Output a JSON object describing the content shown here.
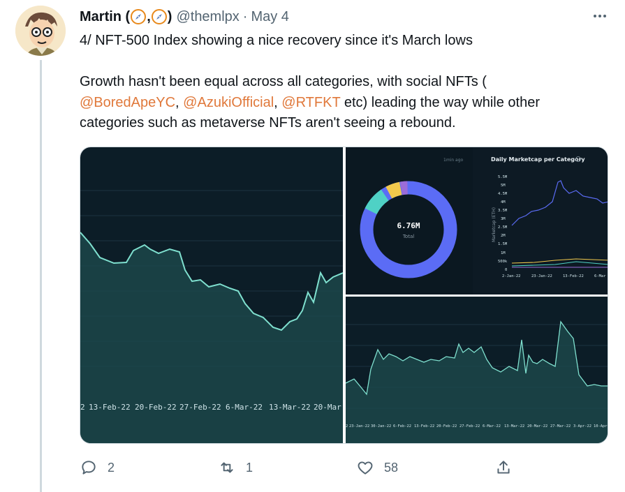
{
  "tweet": {
    "author_name": "Martin (",
    "author_name_sep": ",",
    "author_name_end": ")",
    "handle": "@themlpx",
    "dot": "·",
    "date": "May 4",
    "text_line1": "4/ NFT-500 Index showing a nice recovery since it's March lows",
    "text_line2a": "Growth hasn't been equal across all categories, with social NFTs (",
    "mention1": "@BoredApeYC",
    "comma1": ", ",
    "mention2": "@AzukiOfficial",
    "comma2": ", ",
    "mention3": "@RTFKT",
    "text_line3_rest": " etc) leading the way while other",
    "text_line4": "categories such as metaverse NFTs aren't seeing a rebound."
  },
  "actions": {
    "reply_count": "2",
    "retweet_count": "1",
    "like_count": "58"
  },
  "panel1": {
    "x_ticks": [
      "2",
      "13-Feb-22",
      "20-Feb-22",
      "27-Feb-22",
      "6-Mar-22",
      "13-Mar-22",
      "20-Mar"
    ]
  },
  "panel2": {
    "timestamp": "1min ago",
    "donut_value": "6.76M",
    "donut_label": "Total",
    "title": "Daily Marketcap per Category",
    "y_axis_label": "Marketcap (ETH)",
    "y_ticks": [
      "5.5M",
      "5M",
      "4.5M",
      "4M",
      "3.5M",
      "3M",
      "2.5M",
      "2M",
      "1.5M",
      "1M",
      "500k",
      "0"
    ],
    "x_ticks": [
      "2-Jan-22",
      "23-Jan-22",
      "13-Feb-22",
      "6-Mar"
    ]
  },
  "panel3": {
    "x_ticks": [
      "2",
      "23-Jan-22",
      "30-Jan-22",
      "6-Feb-22",
      "13-Feb-22",
      "20-Feb-22",
      "27-Feb-22",
      "6-Mar-22",
      "13-Mar-22",
      "20-Mar-22",
      "27-Mar-22",
      "3-Apr-22",
      "10-Apr"
    ]
  },
  "colors": {
    "mention": "#e0783a",
    "chart_line": "#7fe0cf",
    "donut_blue": "#5b6cf5",
    "donut_teal": "#4fd1c5",
    "donut_yellow": "#f2c94c",
    "donut_purple": "#9b6cd8"
  },
  "chart_data": [
    {
      "type": "area",
      "x": [
        "13-Feb-22",
        "20-Feb-22",
        "27-Feb-22",
        "6-Mar-22",
        "13-Mar-22",
        "20-Mar"
      ]
    },
    {
      "type": "pie",
      "values": [
        0.84,
        0.08,
        0.05,
        0.03
      ],
      "total": "6.76M"
    },
    {
      "type": "line",
      "x": [
        "2-Jan-22",
        "23-Jan-22",
        "13-Feb-22",
        "6-Mar"
      ]
    },
    {
      "type": "area",
      "x": [
        "23-Jan-22",
        "30-Jan-22",
        "6-Feb-22",
        "13-Feb-22",
        "20-Feb-22",
        "27-Feb-22",
        "6-Mar-22",
        "13-Mar-22",
        "20-Mar-22",
        "27-Mar-22",
        "3-Apr-22",
        "10-Apr"
      ]
    }
  ]
}
